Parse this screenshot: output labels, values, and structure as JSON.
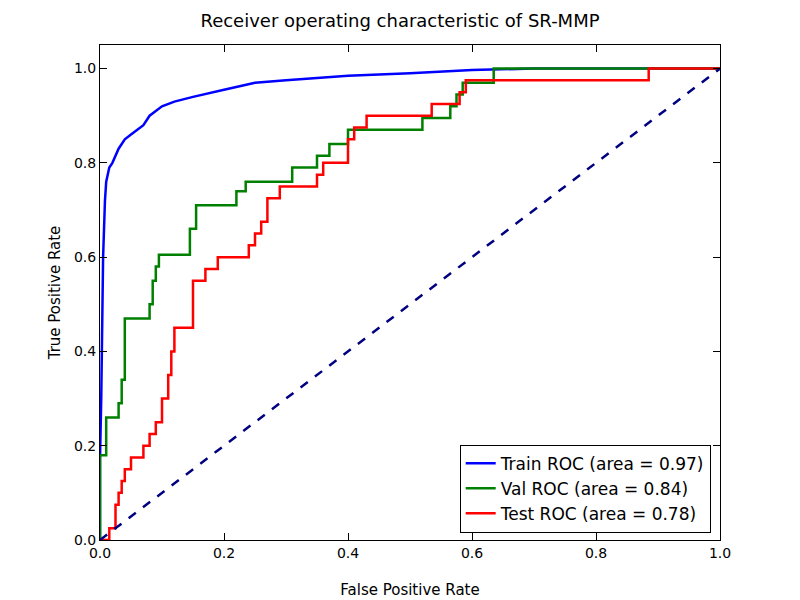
{
  "chart_data": {
    "type": "line",
    "title": "Receiver operating characteristic of SR-MMP",
    "x_label": "False Positive Rate",
    "y_label": "True Positive Rate",
    "xlim": [
      0,
      1
    ],
    "ylim": [
      0,
      1.05
    ],
    "xticks": [
      {
        "value": 0,
        "label": "0.0"
      },
      {
        "value": 0.2,
        "label": "0.2"
      },
      {
        "value": 0.4,
        "label": "0.4"
      },
      {
        "value": 0.6,
        "label": "0.6"
      },
      {
        "value": 0.8,
        "label": "0.8"
      },
      {
        "value": 1,
        "label": "1.0"
      }
    ],
    "yticks": [
      {
        "value": 0,
        "label": "0.0"
      },
      {
        "value": 0.2,
        "label": "0.2"
      },
      {
        "value": 0.4,
        "label": "0.4"
      },
      {
        "value": 0.6,
        "label": "0.6"
      },
      {
        "value": 0.8,
        "label": "0.8"
      },
      {
        "value": 1,
        "label": "1.0"
      }
    ],
    "grid": false,
    "legend": "lower right",
    "series": [
      {
        "name": "Train ROC (area = 0.97)",
        "color": "#0000ff",
        "line_style": "solid",
        "x": [
          0,
          0,
          0.002,
          0.005,
          0.008,
          0.01,
          0.015,
          0.02,
          0.03,
          0.04,
          0.05,
          0.06,
          0.07,
          0.08,
          0.1,
          0.12,
          0.15,
          0.2,
          0.25,
          0.3,
          0.4,
          0.5,
          0.6,
          0.7,
          1.0
        ],
        "values": [
          0,
          0.17,
          0.3,
          0.6,
          0.72,
          0.76,
          0.79,
          0.8,
          0.83,
          0.85,
          0.86,
          0.87,
          0.88,
          0.9,
          0.92,
          0.93,
          0.94,
          0.955,
          0.97,
          0.975,
          0.985,
          0.99,
          0.997,
          1.0,
          1.0
        ]
      },
      {
        "name": "Val ROC (area = 0.84)",
        "color": "#008000",
        "line_style": "solid",
        "x": [
          0,
          0,
          0.01,
          0.01,
          0.03,
          0.03,
          0.035,
          0.035,
          0.04,
          0.04,
          0.08,
          0.08,
          0.085,
          0.085,
          0.09,
          0.09,
          0.095,
          0.095,
          0.145,
          0.145,
          0.155,
          0.155,
          0.22,
          0.22,
          0.235,
          0.235,
          0.31,
          0.31,
          0.35,
          0.35,
          0.37,
          0.37,
          0.4,
          0.4,
          0.52,
          0.52,
          0.565,
          0.565,
          0.575,
          0.575,
          0.585,
          0.585,
          0.635,
          0.635,
          1.0
        ],
        "values": [
          0,
          0.18,
          0.18,
          0.26,
          0.26,
          0.29,
          0.29,
          0.34,
          0.34,
          0.47,
          0.47,
          0.5,
          0.5,
          0.55,
          0.55,
          0.58,
          0.58,
          0.605,
          0.605,
          0.66,
          0.66,
          0.71,
          0.71,
          0.74,
          0.74,
          0.76,
          0.76,
          0.79,
          0.79,
          0.815,
          0.815,
          0.84,
          0.84,
          0.87,
          0.87,
          0.895,
          0.895,
          0.92,
          0.92,
          0.945,
          0.945,
          0.97,
          0.97,
          1.0,
          1.0
        ]
      },
      {
        "name": "Test ROC (area = 0.78)",
        "color": "#ff0000",
        "line_style": "solid",
        "x": [
          0,
          0.015,
          0.015,
          0.025,
          0.025,
          0.03,
          0.03,
          0.035,
          0.035,
          0.04,
          0.04,
          0.05,
          0.05,
          0.07,
          0.07,
          0.08,
          0.08,
          0.09,
          0.09,
          0.1,
          0.1,
          0.11,
          0.11,
          0.115,
          0.115,
          0.12,
          0.12,
          0.15,
          0.15,
          0.17,
          0.17,
          0.19,
          0.19,
          0.24,
          0.24,
          0.25,
          0.25,
          0.26,
          0.26,
          0.27,
          0.27,
          0.29,
          0.29,
          0.35,
          0.35,
          0.36,
          0.36,
          0.4,
          0.4,
          0.41,
          0.41,
          0.43,
          0.43,
          0.535,
          0.535,
          0.58,
          0.58,
          0.59,
          0.59,
          0.885,
          0.885,
          1.0
        ],
        "values": [
          0,
          0,
          0.025,
          0.025,
          0.075,
          0.075,
          0.1,
          0.1,
          0.125,
          0.125,
          0.15,
          0.15,
          0.175,
          0.175,
          0.2,
          0.2,
          0.225,
          0.225,
          0.25,
          0.25,
          0.3,
          0.3,
          0.35,
          0.35,
          0.4,
          0.4,
          0.45,
          0.45,
          0.55,
          0.55,
          0.575,
          0.575,
          0.6,
          0.6,
          0.625,
          0.625,
          0.65,
          0.65,
          0.675,
          0.675,
          0.725,
          0.725,
          0.75,
          0.75,
          0.775,
          0.775,
          0.8,
          0.8,
          0.85,
          0.85,
          0.875,
          0.875,
          0.9,
          0.9,
          0.925,
          0.925,
          0.95,
          0.95,
          0.975,
          0.975,
          1.0,
          1.0
        ]
      },
      {
        "color": "#000080",
        "line_style": "dashed",
        "x": [
          0,
          1
        ],
        "values": [
          0,
          1
        ]
      }
    ]
  }
}
